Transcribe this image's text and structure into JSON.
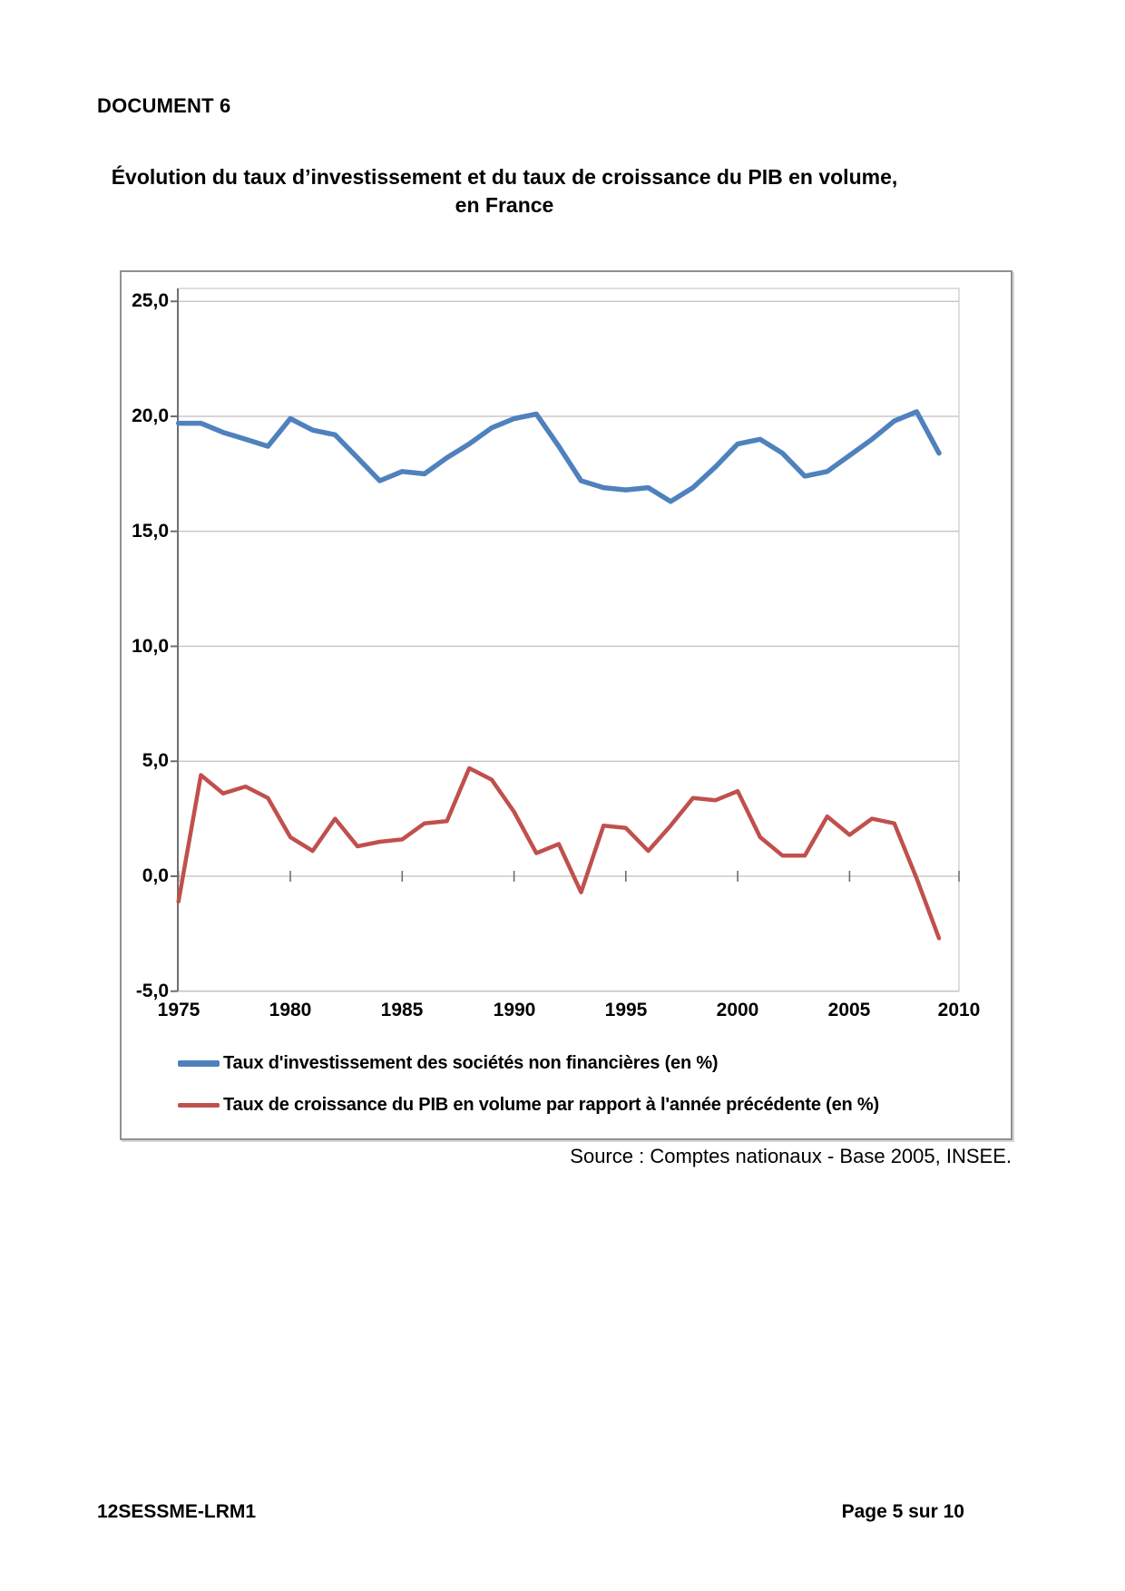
{
  "page": {
    "doc_label": "DOCUMENT 6",
    "title_line1": "Évolution du taux d’investissement et du taux de croissance du PIB en volume,",
    "title_line2": "en France",
    "source": "Source : Comptes nationaux - Base 2005, INSEE.",
    "footer_left": "12SESSME-LRM1",
    "footer_right": "Page 5 sur 10"
  },
  "chart_data": {
    "type": "line",
    "title": "",
    "xlabel": "",
    "ylabel": "",
    "x": [
      1975,
      1976,
      1977,
      1978,
      1979,
      1980,
      1981,
      1982,
      1983,
      1984,
      1985,
      1986,
      1987,
      1988,
      1989,
      1990,
      1991,
      1992,
      1993,
      1994,
      1995,
      1996,
      1997,
      1998,
      1999,
      2000,
      2001,
      2002,
      2003,
      2004,
      2005,
      2006,
      2007,
      2008,
      2009
    ],
    "series": [
      {
        "name": "Taux d'investissement des sociétés non financières (en %)",
        "color": "#4F81BD",
        "values": [
          19.7,
          19.7,
          19.3,
          19.0,
          18.7,
          19.9,
          19.4,
          19.2,
          18.2,
          17.2,
          17.6,
          17.5,
          18.2,
          18.8,
          19.5,
          19.9,
          20.1,
          18.7,
          17.2,
          16.9,
          16.8,
          16.9,
          16.3,
          16.9,
          17.8,
          18.8,
          19.0,
          18.4,
          17.4,
          17.6,
          18.3,
          19.0,
          19.8,
          20.2,
          18.4
        ]
      },
      {
        "name": "Taux de croissance du PIB en volume par rapport à l'année précédente (en %)",
        "color": "#C0504D",
        "values": [
          -1.1,
          4.4,
          3.6,
          3.9,
          3.4,
          1.7,
          1.1,
          2.5,
          1.3,
          1.5,
          1.6,
          2.3,
          2.4,
          4.7,
          4.2,
          2.8,
          1.0,
          1.4,
          -0.7,
          2.2,
          2.1,
          1.1,
          2.2,
          3.4,
          3.3,
          3.7,
          1.7,
          0.9,
          0.9,
          2.6,
          1.8,
          2.5,
          2.3,
          -0.1,
          -2.7
        ]
      }
    ],
    "ylim": [
      -5,
      25
    ],
    "ytick_step": 5,
    "ytick_labels": [
      "25,0",
      "20,0",
      "15,0",
      "10,0",
      "5,0",
      "0,0",
      "-5,0"
    ],
    "xtick_labels": [
      "1975",
      "1980",
      "1985",
      "1990",
      "1995",
      "2000",
      "2005",
      "2010"
    ],
    "grid": true,
    "legend_position": "bottom-left-inside",
    "grid_color": "#BFBFBF",
    "axis_color": "#6F6F6F"
  }
}
